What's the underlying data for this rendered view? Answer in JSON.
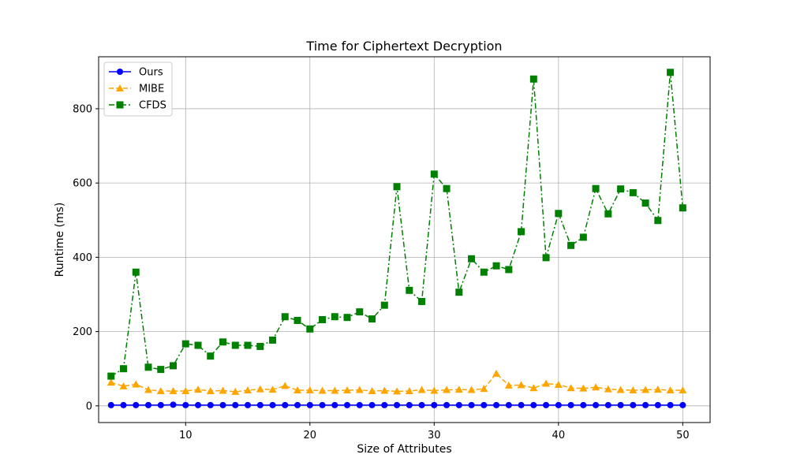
{
  "chart_data": {
    "type": "line",
    "title": "Time for Ciphertext Decryption",
    "xlabel": "Size of Attributes",
    "ylabel": "Runtime (ms)",
    "xlim": [
      3,
      52.2
    ],
    "ylim": [
      -45,
      940
    ],
    "xticks": [
      10,
      20,
      30,
      40,
      50
    ],
    "yticks": [
      0,
      200,
      400,
      600,
      800
    ],
    "grid": true,
    "legend_position": "top-left",
    "x": [
      4,
      5,
      6,
      7,
      8,
      9,
      10,
      11,
      12,
      13,
      14,
      15,
      16,
      17,
      18,
      19,
      20,
      21,
      22,
      23,
      24,
      25,
      26,
      27,
      28,
      29,
      30,
      31,
      32,
      33,
      34,
      35,
      36,
      37,
      38,
      39,
      40,
      41,
      42,
      43,
      44,
      45,
      46,
      47,
      48,
      49,
      50
    ],
    "series": [
      {
        "name": "Ours",
        "color": "#0000ff",
        "marker": "circle",
        "linestyle": "solid",
        "values": [
          2,
          2,
          2,
          2,
          2,
          3,
          2,
          2,
          2,
          2,
          2,
          2,
          2,
          2,
          2,
          2,
          2,
          2,
          2,
          2,
          2,
          2,
          2,
          2,
          2,
          2,
          2,
          2,
          2,
          2,
          2,
          2,
          2,
          2,
          2,
          2,
          2,
          2,
          2,
          2,
          2,
          2,
          2,
          2,
          2,
          2,
          2
        ]
      },
      {
        "name": "MIBE",
        "color": "#ffa500",
        "marker": "triangle",
        "linestyle": "dashed",
        "values": [
          63,
          53,
          58,
          43,
          40,
          40,
          40,
          44,
          40,
          41,
          38,
          42,
          45,
          44,
          54,
          42,
          42,
          41,
          41,
          42,
          43,
          40,
          41,
          39,
          40,
          43,
          41,
          43,
          44,
          43,
          46,
          87,
          55,
          56,
          48,
          60,
          57,
          48,
          47,
          50,
          45,
          43,
          42,
          43,
          44,
          42,
          42
        ]
      },
      {
        "name": "CFDS",
        "color": "#008000",
        "marker": "square",
        "linestyle": "dashdot",
        "values": [
          80,
          100,
          360,
          104,
          98,
          108,
          167,
          163,
          134,
          172,
          163,
          163,
          160,
          177,
          240,
          230,
          207,
          232,
          240,
          238,
          253,
          234,
          271,
          590,
          311,
          281,
          624,
          585,
          306,
          396,
          360,
          377,
          367,
          469,
          880,
          399,
          518,
          432,
          454,
          585,
          517,
          584,
          574,
          546,
          499,
          898,
          533
        ]
      }
    ]
  }
}
